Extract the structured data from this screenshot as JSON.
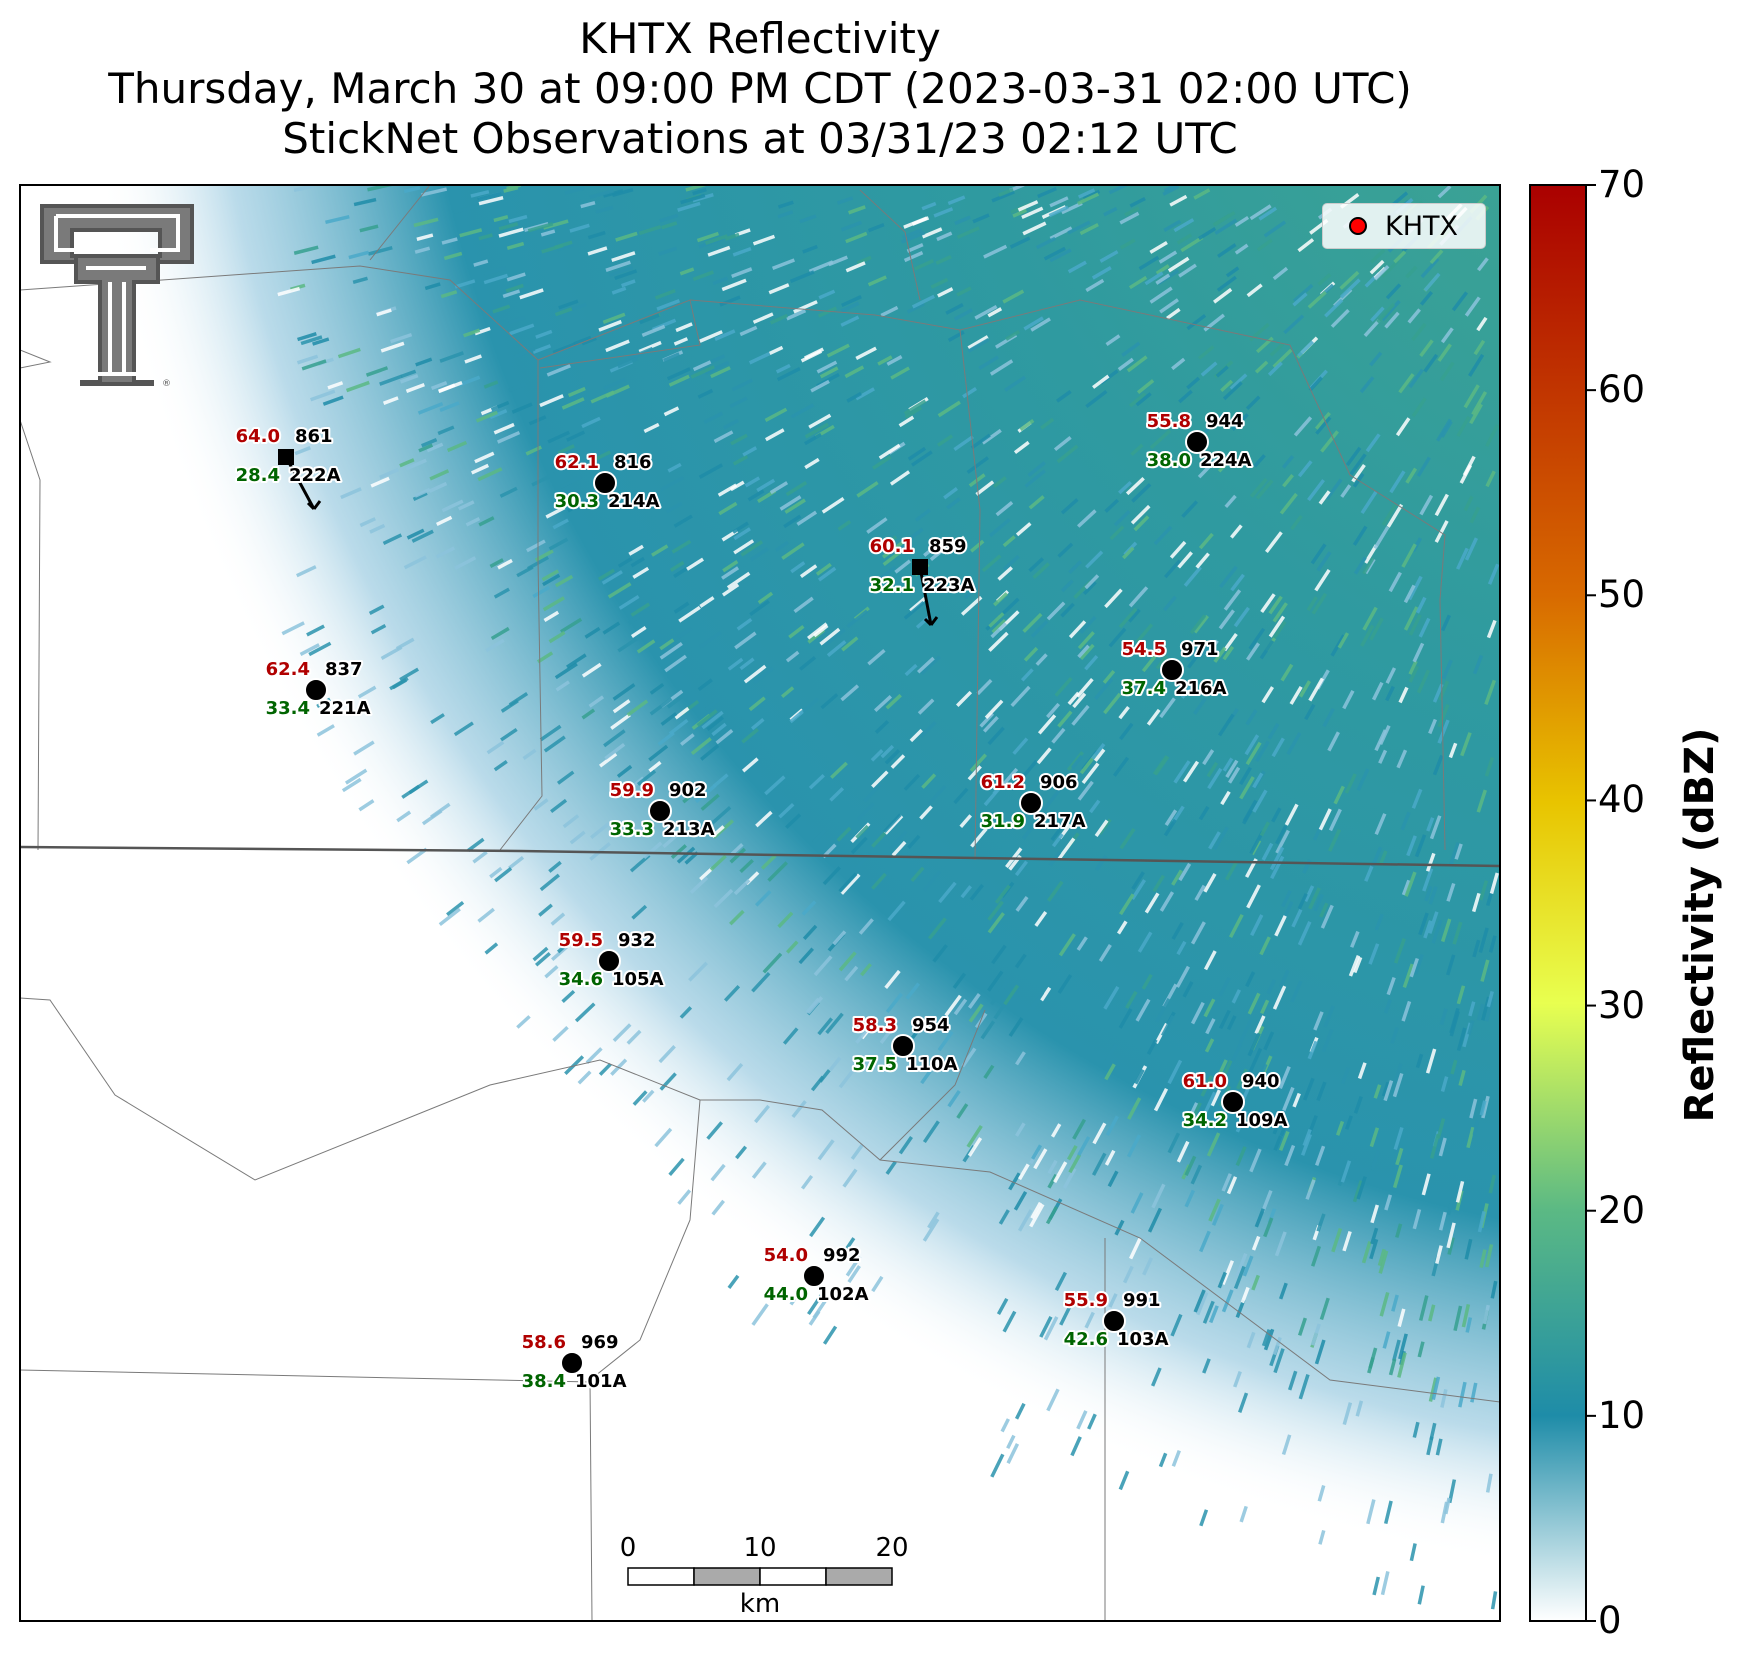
{
  "title": {
    "line1": "KHTX Reflectivity",
    "line2": "Thursday, March 30 at 09:00 PM CDT (2023-03-31 02:00 UTC)",
    "line3": "StickNet Observations at 03/31/23 02:12 UTC"
  },
  "legend": {
    "label": "KHTX",
    "marker_color": "#ff0000"
  },
  "colorbar": {
    "label": "Reflectivity (dBZ)",
    "ticks": [
      "0",
      "10",
      "20",
      "30",
      "40",
      "50",
      "60",
      "70"
    ],
    "min": 0,
    "max": 70,
    "stops": [
      "#ffffff",
      "#1e8ca8",
      "#5bb984",
      "#e8ff50",
      "#e8c400",
      "#d86a00",
      "#aa0000"
    ]
  },
  "scalebar": {
    "ticks": [
      "0",
      "10",
      "20"
    ],
    "unit": "km"
  },
  "logo": {
    "name": "texas-tech-double-t-logo"
  },
  "stations": [
    {
      "id": "222A",
      "temp": "64.0",
      "dew": "28.4",
      "pres": "861",
      "marker": "square",
      "wind": true
    },
    {
      "id": "214A",
      "temp": "62.1",
      "dew": "30.3",
      "pres": "816",
      "marker": "circle",
      "wind": false
    },
    {
      "id": "224A",
      "temp": "55.8",
      "dew": "38.0",
      "pres": "944",
      "marker": "circle",
      "wind": false
    },
    {
      "id": "223A",
      "temp": "60.1",
      "dew": "32.1",
      "pres": "859",
      "marker": "square",
      "wind": true
    },
    {
      "id": "216A",
      "temp": "54.5",
      "dew": "37.4",
      "pres": "971",
      "marker": "circle",
      "wind": false
    },
    {
      "id": "221A",
      "temp": "62.4",
      "dew": "33.4",
      "pres": "837",
      "marker": "circle",
      "wind": false
    },
    {
      "id": "213A",
      "temp": "59.9",
      "dew": "33.3",
      "pres": "902",
      "marker": "circle",
      "wind": false
    },
    {
      "id": "217A",
      "temp": "61.2",
      "dew": "31.9",
      "pres": "906",
      "marker": "circle",
      "wind": false
    },
    {
      "id": "105A",
      "temp": "59.5",
      "dew": "34.6",
      "pres": "932",
      "marker": "circle",
      "wind": false
    },
    {
      "id": "110A",
      "temp": "58.3",
      "dew": "37.5",
      "pres": "954",
      "marker": "circle",
      "wind": false
    },
    {
      "id": "109A",
      "temp": "61.0",
      "dew": "34.2",
      "pres": "940",
      "marker": "circle",
      "wind": false
    },
    {
      "id": "102A",
      "temp": "54.0",
      "dew": "44.0",
      "pres": "992",
      "marker": "circle",
      "wind": false
    },
    {
      "id": "103A",
      "temp": "55.9",
      "dew": "42.6",
      "pres": "991",
      "marker": "circle",
      "wind": false
    },
    {
      "id": "101A",
      "temp": "58.6",
      "dew": "38.4",
      "pres": "969",
      "marker": "circle",
      "wind": false
    }
  ]
}
